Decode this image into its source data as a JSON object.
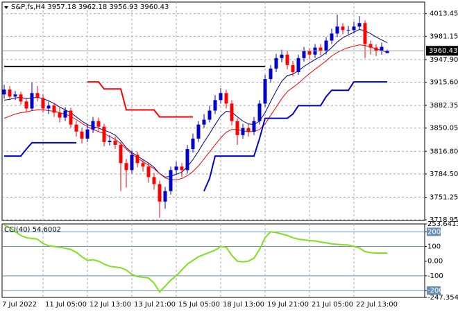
{
  "chart_data": [
    {
      "type": "candlestick",
      "symbol": "S&P,fs,H4",
      "categories": [
        "7 Jul 2022",
        null,
        null,
        null,
        null,
        null,
        null,
        "11 Jul 05:00",
        null,
        null,
        null,
        null,
        null,
        null,
        null,
        "12 Jul 13:00",
        null,
        null,
        null,
        null,
        null,
        null,
        null,
        "13 Jul 21:00",
        null,
        null,
        null,
        null,
        null,
        null,
        null,
        "15 Jul 05:00",
        null,
        null,
        null,
        null,
        null,
        null,
        null,
        "18 Jul 13:00",
        null,
        null,
        null,
        null,
        null,
        null,
        null,
        "19 Jul 21:00",
        null,
        null,
        null,
        null,
        null,
        null,
        null,
        "21 Jul 05:00",
        null,
        null,
        null,
        null,
        null,
        null,
        null,
        "22 Jul 13:00",
        null,
        null,
        null,
        null,
        null,
        null
      ],
      "open": [
        3898,
        3905,
        3895,
        3898,
        3888,
        3878,
        3900,
        3893,
        3878,
        3882,
        3872,
        3865,
        3875,
        3855,
        3845,
        3835,
        3848,
        3860,
        3852,
        3830,
        3832,
        3826,
        3800,
        3790,
        3812,
        3800,
        3795,
        3780,
        3770,
        3745,
        3760,
        3790,
        3795,
        3790,
        3820,
        3835,
        3855,
        3862,
        3875,
        3890,
        3900,
        3885,
        3860,
        3840,
        3850,
        3845,
        3860,
        3885,
        3920,
        3935,
        3950,
        3955,
        3940,
        3930,
        3950,
        3960,
        3955,
        3965,
        3960,
        3975,
        3985,
        3995,
        3990,
        3990,
        3995,
        4000,
        3970,
        3965,
        3960,
        3957.18
      ],
      "high": [
        3912,
        3910,
        3903,
        3902,
        3893,
        3915,
        3910,
        3898,
        3888,
        3886,
        3880,
        3880,
        3879,
        3860,
        3850,
        3855,
        3866,
        3865,
        3856,
        3840,
        3838,
        3830,
        3806,
        3818,
        3816,
        3806,
        3800,
        3786,
        3775,
        3766,
        3795,
        3802,
        3800,
        3826,
        3842,
        3860,
        3870,
        3882,
        3897,
        3907,
        3905,
        3890,
        3864,
        3856,
        3856,
        3866,
        3890,
        3926,
        3940,
        3956,
        3962,
        3960,
        3946,
        3955,
        3966,
        3964,
        3970,
        3970,
        3980,
        3992,
        4012,
        4000,
        3996,
        4002,
        4010,
        4004,
        3975,
        3970,
        3972,
        3962.18
      ],
      "low": [
        3892,
        3890,
        3890,
        3883,
        3872,
        3875,
        3888,
        3872,
        3870,
        3866,
        3858,
        3860,
        3850,
        3838,
        3828,
        3830,
        3843,
        3846,
        3824,
        3825,
        3820,
        3760,
        3765,
        3785,
        3794,
        3788,
        3772,
        3762,
        3722,
        3735,
        3755,
        3783,
        3780,
        3785,
        3815,
        3830,
        3850,
        3858,
        3870,
        3885,
        3878,
        3854,
        3826,
        3835,
        3838,
        3840,
        3855,
        3880,
        3915,
        3930,
        3944,
        3934,
        3924,
        3926,
        3945,
        3948,
        3950,
        3954,
        3955,
        3970,
        3980,
        3984,
        3984,
        3985,
        3990,
        3950,
        3955,
        3953,
        3955,
        3956.93
      ],
      "close": [
        3905,
        3895,
        3898,
        3888,
        3878,
        3900,
        3893,
        3878,
        3882,
        3872,
        3865,
        3875,
        3855,
        3845,
        3835,
        3848,
        3860,
        3852,
        3830,
        3832,
        3826,
        3800,
        3790,
        3812,
        3800,
        3795,
        3780,
        3770,
        3745,
        3760,
        3790,
        3795,
        3790,
        3820,
        3835,
        3855,
        3862,
        3875,
        3890,
        3900,
        3885,
        3860,
        3840,
        3850,
        3845,
        3860,
        3885,
        3920,
        3935,
        3950,
        3955,
        3940,
        3930,
        3950,
        3960,
        3955,
        3965,
        3960,
        3975,
        3985,
        3995,
        3990,
        3990,
        3995,
        4000,
        3970,
        3965,
        3960,
        3966,
        3960.43
      ],
      "up_color": "#0000cd",
      "down_color": "#ff0000",
      "series": [
        {
          "color": "#000080",
          "width": 1,
          "values": [
            3890,
            3891,
            3893,
            3894,
            3892,
            3893,
            3894,
            3892,
            3889,
            3885,
            3880,
            3876,
            3872,
            3866,
            3860,
            3855,
            3852,
            3850,
            3847,
            3844,
            3840,
            3832,
            3822,
            3815,
            3810,
            3805,
            3800,
            3794,
            3785,
            3780,
            3781,
            3784,
            3787,
            3795,
            3805,
            3817,
            3830,
            3842,
            3855,
            3867,
            3874,
            3873,
            3866,
            3860,
            3856,
            3855,
            3860,
            3872,
            3888,
            3903,
            3917,
            3925,
            3927,
            3932,
            3938,
            3943,
            3948,
            3952,
            3958,
            3965,
            3973,
            3979,
            3983,
            3987,
            3991,
            3989,
            3985,
            3980,
            3976,
            3972
          ]
        },
        {
          "color": "#ff0000",
          "width": 1,
          "values": [
            3864,
            3867,
            3870,
            3872,
            3873,
            3875,
            3876,
            3876,
            3875,
            3874,
            3872,
            3870,
            3867,
            3862,
            3857,
            3852,
            3848,
            3845,
            3842,
            3838,
            3834,
            3828,
            3820,
            3813,
            3807,
            3802,
            3797,
            3792,
            3785,
            3779,
            3776,
            3776,
            3778,
            3782,
            3788,
            3796,
            3806,
            3816,
            3826,
            3836,
            3844,
            3848,
            3848,
            3846,
            3845,
            3845,
            3848,
            3856,
            3868,
            3880,
            3892,
            3902,
            3908,
            3914,
            3921,
            3928,
            3934,
            3940,
            3946,
            3953,
            3958,
            3962,
            3965,
            3967,
            3969,
            3968,
            3966,
            3963,
            3961,
            3958
          ]
        },
        {
          "color": "#ff0000",
          "width": 2,
          "values": [
            null,
            null,
            null,
            null,
            null,
            null,
            null,
            null,
            null,
            null,
            null,
            null,
            null,
            null,
            null,
            3916,
            3916,
            3916,
            3906,
            3906,
            3906,
            3906,
            3876,
            3876,
            3876,
            3876,
            3876,
            3876,
            3866,
            3866,
            3866,
            3866,
            3866,
            3866,
            3866,
            null,
            null,
            null,
            null,
            null,
            null,
            null,
            null,
            null,
            null,
            null,
            null,
            null,
            null,
            null,
            null,
            null,
            null,
            null,
            null,
            null,
            null,
            null,
            null,
            null,
            null,
            null,
            null,
            null,
            null,
            null,
            null,
            null,
            null,
            null
          ]
        },
        {
          "color": "#0000cd",
          "width": 2,
          "values": [
            3810,
            3810,
            3810,
            3810,
            3820,
            3829,
            3829,
            3829,
            3829,
            3829,
            3829,
            3829,
            3829,
            3829,
            null,
            null,
            null,
            null,
            null,
            null,
            null,
            null,
            null,
            null,
            null,
            null,
            null,
            null,
            null,
            null,
            null,
            null,
            null,
            null,
            null,
            null,
            3760,
            3778,
            3810,
            3810,
            3810,
            3810,
            3810,
            3810,
            3810,
            3810,
            3835,
            3864,
            3864,
            3864,
            3864,
            3864,
            3870,
            3882,
            3882,
            3882,
            3882,
            3882,
            3895,
            3904,
            3904,
            3904,
            3904,
            3916,
            3916,
            3916,
            3916,
            3916,
            3916,
            3916
          ]
        },
        {
          "color": "#000000",
          "width": 2,
          "values": [
            3938,
            3938,
            3938,
            3938,
            3938,
            3938,
            3938,
            3938,
            3938,
            3938,
            3938,
            3938,
            3938,
            3938,
            3938,
            3938,
            3938,
            3938,
            3938,
            3938,
            3938,
            3938,
            3938,
            3938,
            3938,
            3938,
            3938,
            3938,
            3938,
            3938,
            3938,
            3938,
            3938,
            3938,
            3938,
            3938,
            3938,
            3938,
            3938,
            3938,
            3938,
            3938,
            3938,
            3938,
            3938,
            3938,
            3938,
            3938,
            null,
            null,
            null,
            null,
            null,
            null,
            null,
            null,
            null,
            null,
            null,
            null,
            null,
            null,
            null,
            null,
            null,
            null,
            null,
            null,
            null,
            null
          ]
        }
      ],
      "ylim": [
        3718,
        4030
      ],
      "yticks": [
        4013.45,
        3981.15,
        {
          "value": 3947.9,
          "label": "3947.90"
        },
        {
          "value": 3915.6,
          "label": "3915.60"
        },
        3882.35,
        3850.05,
        {
          "value": 3816.8,
          "label": "3816.80"
        },
        {
          "value": 3784.5,
          "label": "3784.50"
        },
        3751.25,
        3718.95
      ],
      "grid": true
    },
    {
      "type": "line",
      "name": "CCI(40)",
      "color": "#7fe01e",
      "values": [
        245,
        230,
        200,
        175,
        160,
        155,
        150,
        120,
        105,
        100,
        95,
        88,
        80,
        60,
        30,
        5,
        10,
        0,
        -20,
        -35,
        -40,
        -45,
        -60,
        -90,
        -105,
        -110,
        -115,
        -150,
        -210,
        -170,
        -130,
        -100,
        -60,
        -20,
        5,
        30,
        45,
        60,
        75,
        100,
        95,
        40,
        0,
        -5,
        0,
        20,
        80,
        160,
        200,
        195,
        185,
        175,
        160,
        150,
        145,
        140,
        138,
        130,
        125,
        118,
        115,
        112,
        110,
        100,
        90,
        65,
        58,
        55,
        56,
        54.6002
      ],
      "ylim": [
        -247.354,
        253.6413
      ],
      "yticks": [
        253.6413,
        200,
        100,
        {
          "value": 0,
          "label": "0.00"
        },
        -100,
        -200,
        -247.354
      ],
      "levels": [
        200,
        100,
        -100,
        -200
      ],
      "level_color": "#6a8fb5"
    }
  ]
}
